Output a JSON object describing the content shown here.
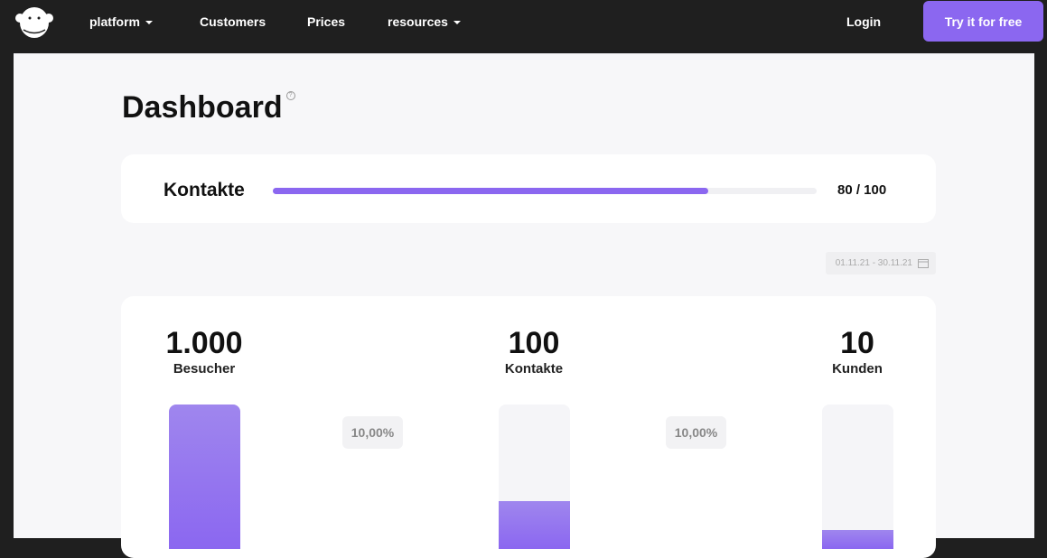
{
  "nav": {
    "items": [
      {
        "label": "platform",
        "dropdown": true
      },
      {
        "label": "Customers"
      },
      {
        "label": "Prices"
      },
      {
        "label": "resources",
        "dropdown": true
      }
    ],
    "login": "Login",
    "cta": "Try it for free",
    "accent": "#8b67f0"
  },
  "page": {
    "title": "Dashboard",
    "help_icon": "question-circle-icon"
  },
  "contacts_progress": {
    "label": "Kontakte",
    "value": 80,
    "max": 100,
    "text": "80 / 100"
  },
  "date_range": {
    "label": "01.11.21 - 30.11.21",
    "icon": "calendar-icon"
  },
  "funnel": {
    "stages": [
      {
        "value": "1.000",
        "label": "Besucher",
        "fill_percent": 100
      },
      {
        "value": "100",
        "label": "Kontakte",
        "fill_percent": 33
      },
      {
        "value": "10",
        "label": "Kunden",
        "fill_percent": 13
      }
    ],
    "rates": [
      "10,00%",
      "10,00%"
    ]
  }
}
